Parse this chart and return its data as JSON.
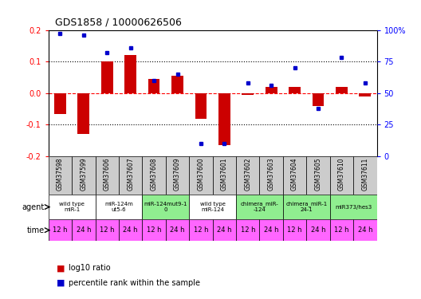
{
  "title": "GDS1858 / 10000626506",
  "samples": [
    "GSM37598",
    "GSM37599",
    "GSM37606",
    "GSM37607",
    "GSM37608",
    "GSM37609",
    "GSM37600",
    "GSM37601",
    "GSM37602",
    "GSM37603",
    "GSM37604",
    "GSM37605",
    "GSM37610",
    "GSM37611"
  ],
  "log10_ratio": [
    -0.065,
    -0.13,
    0.1,
    0.12,
    0.045,
    0.055,
    -0.08,
    -0.165,
    -0.005,
    0.02,
    0.02,
    -0.04,
    0.02,
    -0.01
  ],
  "percentile_rank": [
    97,
    96,
    82,
    86,
    60,
    65,
    10,
    10,
    58,
    56,
    70,
    38,
    78,
    58
  ],
  "ylim": [
    -0.2,
    0.2
  ],
  "yticks_left": [
    -0.2,
    -0.1,
    0.0,
    0.1,
    0.2
  ],
  "yticks_right": [
    0,
    25,
    50,
    75,
    100
  ],
  "dotted_lines_black": [
    -0.1,
    0.1
  ],
  "dashed_line_red": 0.0,
  "agent_groups": [
    {
      "label": "wild type\nmiR-1",
      "start": 0,
      "end": 2,
      "color": "#ffffff"
    },
    {
      "label": "miR-124m\nut5-6",
      "start": 2,
      "end": 4,
      "color": "#ffffff"
    },
    {
      "label": "miR-124mut9-1\n0",
      "start": 4,
      "end": 6,
      "color": "#90ee90"
    },
    {
      "label": "wild type\nmiR-124",
      "start": 6,
      "end": 8,
      "color": "#ffffff"
    },
    {
      "label": "chimera_miR-\n-124",
      "start": 8,
      "end": 10,
      "color": "#90ee90"
    },
    {
      "label": "chimera_miR-1\n24-1",
      "start": 10,
      "end": 12,
      "color": "#90ee90"
    },
    {
      "label": "miR373/hes3",
      "start": 12,
      "end": 14,
      "color": "#90ee90"
    }
  ],
  "time_labels": [
    "12 h",
    "24 h",
    "12 h",
    "24 h",
    "12 h",
    "24 h",
    "12 h",
    "24 h",
    "12 h",
    "24 h",
    "12 h",
    "24 h",
    "12 h",
    "24 h"
  ],
  "time_bg": "#ff66ff",
  "bar_color": "#cc0000",
  "dot_color": "#0000cc",
  "gsm_bg": "#cccccc"
}
